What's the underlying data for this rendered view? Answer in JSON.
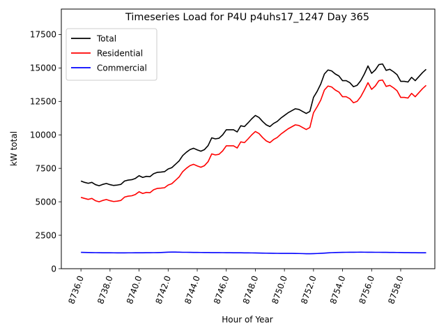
{
  "chart_data": {
    "type": "line",
    "title": "Timeseries Load for P4U p4uhs17_1247  Day 365",
    "xlabel": "Hour of Year",
    "ylabel": "kW total",
    "xlim": [
      8734.65,
      8760.35
    ],
    "ylim": [
      0,
      19400
    ],
    "xticks": [
      8736,
      8738,
      8740,
      8742,
      8744,
      8746,
      8748,
      8750,
      8752,
      8754,
      8756,
      8758
    ],
    "xtick_labels": [
      "8736.0",
      "8738.0",
      "8740.0",
      "8742.0",
      "8744.0",
      "8746.0",
      "8748.0",
      "8750.0",
      "8752.0",
      "8754.0",
      "8756.0",
      "8758.0"
    ],
    "yticks": [
      0,
      2500,
      5000,
      7500,
      10000,
      12500,
      15000,
      17500
    ],
    "ytick_labels": [
      "0",
      "2500",
      "5000",
      "7500",
      "10000",
      "12500",
      "15000",
      "17500"
    ],
    "grid": false,
    "legend": "top-left",
    "x": [
      8736.0,
      8736.25,
      8736.5,
      8736.75,
      8737.0,
      8737.25,
      8737.5,
      8737.75,
      8738.0,
      8738.25,
      8738.5,
      8738.75,
      8739.0,
      8739.25,
      8739.5,
      8739.75,
      8740.0,
      8740.25,
      8740.5,
      8740.75,
      8741.0,
      8741.25,
      8741.5,
      8741.75,
      8742.0,
      8742.25,
      8742.5,
      8742.75,
      8743.0,
      8743.25,
      8743.5,
      8743.75,
      8744.0,
      8744.25,
      8744.5,
      8744.75,
      8745.0,
      8745.25,
      8745.5,
      8745.75,
      8746.0,
      8746.25,
      8746.5,
      8746.75,
      8747.0,
      8747.25,
      8747.5,
      8747.75,
      8748.0,
      8748.25,
      8748.5,
      8748.75,
      8749.0,
      8749.25,
      8749.5,
      8749.75,
      8750.0,
      8750.25,
      8750.5,
      8750.75,
      8751.0,
      8751.25,
      8751.5,
      8751.75,
      8752.0,
      8752.25,
      8752.5,
      8752.75,
      8753.0,
      8753.25,
      8753.5,
      8753.75,
      8754.0,
      8754.25,
      8754.5,
      8754.75,
      8755.0,
      8755.25,
      8755.5,
      8755.75,
      8756.0,
      8756.25,
      8756.5,
      8756.75,
      8757.0,
      8757.25,
      8757.5,
      8757.75,
      8758.0,
      8758.25,
      8758.5,
      8758.75,
      8759.0,
      8759.25,
      8759.5,
      8759.75
    ],
    "series": [
      {
        "name": "Total",
        "color": "#000000",
        "values": [
          6550,
          6450,
          6380,
          6450,
          6280,
          6200,
          6300,
          6370,
          6280,
          6220,
          6250,
          6300,
          6550,
          6620,
          6650,
          6750,
          6950,
          6820,
          6900,
          6880,
          7100,
          7200,
          7220,
          7250,
          7450,
          7550,
          7800,
          8050,
          8450,
          8700,
          8900,
          9000,
          8880,
          8780,
          8900,
          9200,
          9780,
          9700,
          9750,
          10000,
          10380,
          10380,
          10380,
          10220,
          10680,
          10620,
          10900,
          11200,
          11450,
          11300,
          11000,
          10750,
          10620,
          10850,
          11000,
          11250,
          11450,
          11650,
          11800,
          11950,
          11900,
          11750,
          11600,
          11750,
          12800,
          13250,
          13800,
          14550,
          14850,
          14780,
          14550,
          14400,
          14050,
          14050,
          13900,
          13600,
          13700,
          14050,
          14550,
          15150,
          14600,
          14850,
          15250,
          15300,
          14820,
          14900,
          14720,
          14500,
          14000,
          14000,
          13950,
          14300,
          14050,
          14350,
          14650,
          14900
        ]
      },
      {
        "name": "Residential",
        "color": "#ff0000",
        "values": [
          5330,
          5250,
          5180,
          5250,
          5080,
          5000,
          5100,
          5170,
          5080,
          5020,
          5050,
          5100,
          5350,
          5420,
          5450,
          5550,
          5750,
          5620,
          5700,
          5680,
          5900,
          6000,
          6020,
          6050,
          6250,
          6350,
          6600,
          6850,
          7250,
          7500,
          7700,
          7800,
          7680,
          7580,
          7700,
          8000,
          8580,
          8500,
          8550,
          8800,
          9180,
          9180,
          9180,
          9020,
          9480,
          9420,
          9700,
          10000,
          10250,
          10100,
          9800,
          9550,
          9420,
          9650,
          9800,
          10050,
          10250,
          10450,
          10600,
          10750,
          10700,
          10550,
          10400,
          10550,
          11650,
          12100,
          12600,
          13350,
          13650,
          13580,
          13350,
          13200,
          12850,
          12850,
          12700,
          12400,
          12500,
          12850,
          13350,
          13900,
          13400,
          13650,
          14050,
          14100,
          13620,
          13700,
          13520,
          13300,
          12800,
          12800,
          12750,
          13100,
          12850,
          13150,
          13450,
          13700
        ]
      },
      {
        "name": "Commercial",
        "color": "#0000ff",
        "values": [
          1220,
          1215,
          1210,
          1205,
          1200,
          1195,
          1192,
          1190,
          1188,
          1186,
          1185,
          1185,
          1185,
          1186,
          1187,
          1188,
          1190,
          1192,
          1195,
          1198,
          1200,
          1205,
          1210,
          1220,
          1235,
          1240,
          1240,
          1235,
          1225,
          1225,
          1220,
          1218,
          1215,
          1212,
          1210,
          1208,
          1205,
          1205,
          1203,
          1200,
          1198,
          1195,
          1192,
          1190,
          1188,
          1185,
          1182,
          1180,
          1175,
          1170,
          1165,
          1160,
          1155,
          1150,
          1148,
          1145,
          1145,
          1145,
          1143,
          1140,
          1135,
          1128,
          1120,
          1120,
          1125,
          1135,
          1150,
          1165,
          1185,
          1200,
          1210,
          1215,
          1220,
          1225,
          1228,
          1230,
          1232,
          1233,
          1232,
          1230,
          1228,
          1226,
          1225,
          1223,
          1220,
          1218,
          1215,
          1212,
          1208,
          1205,
          1202,
          1198,
          1195,
          1192,
          1190,
          1190
        ]
      }
    ]
  }
}
